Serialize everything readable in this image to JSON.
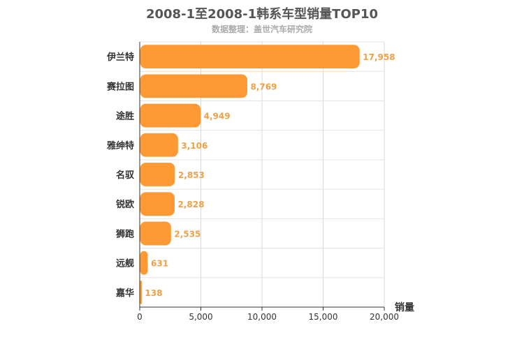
{
  "chart_data": {
    "type": "bar",
    "orientation": "horizontal",
    "title": "2008-1至2008-1韩系车型销量TOP10",
    "subtitle": "数据整理：盖世汽车研究院",
    "categories": [
      "伊兰特",
      "赛拉图",
      "途胜",
      "雅绅特",
      "名驭",
      "锐欧",
      "狮跑",
      "远舰",
      "嘉华"
    ],
    "values": [
      17958,
      8769,
      4949,
      3106,
      2853,
      2828,
      2535,
      631,
      138
    ],
    "value_labels": [
      "17,958",
      "8,769",
      "4,949",
      "3,106",
      "2,853",
      "2,828",
      "2,535",
      "631",
      "138"
    ],
    "xlabel": "销量",
    "xlim": [
      0,
      20000
    ],
    "xticks": [
      0,
      5000,
      10000,
      15000,
      20000
    ],
    "xtick_labels": [
      "0",
      "5,000",
      "10,000",
      "15,000",
      "20,000"
    ],
    "grid": true,
    "bar_color": "#ff9933",
    "label_color": "#f0a048"
  }
}
